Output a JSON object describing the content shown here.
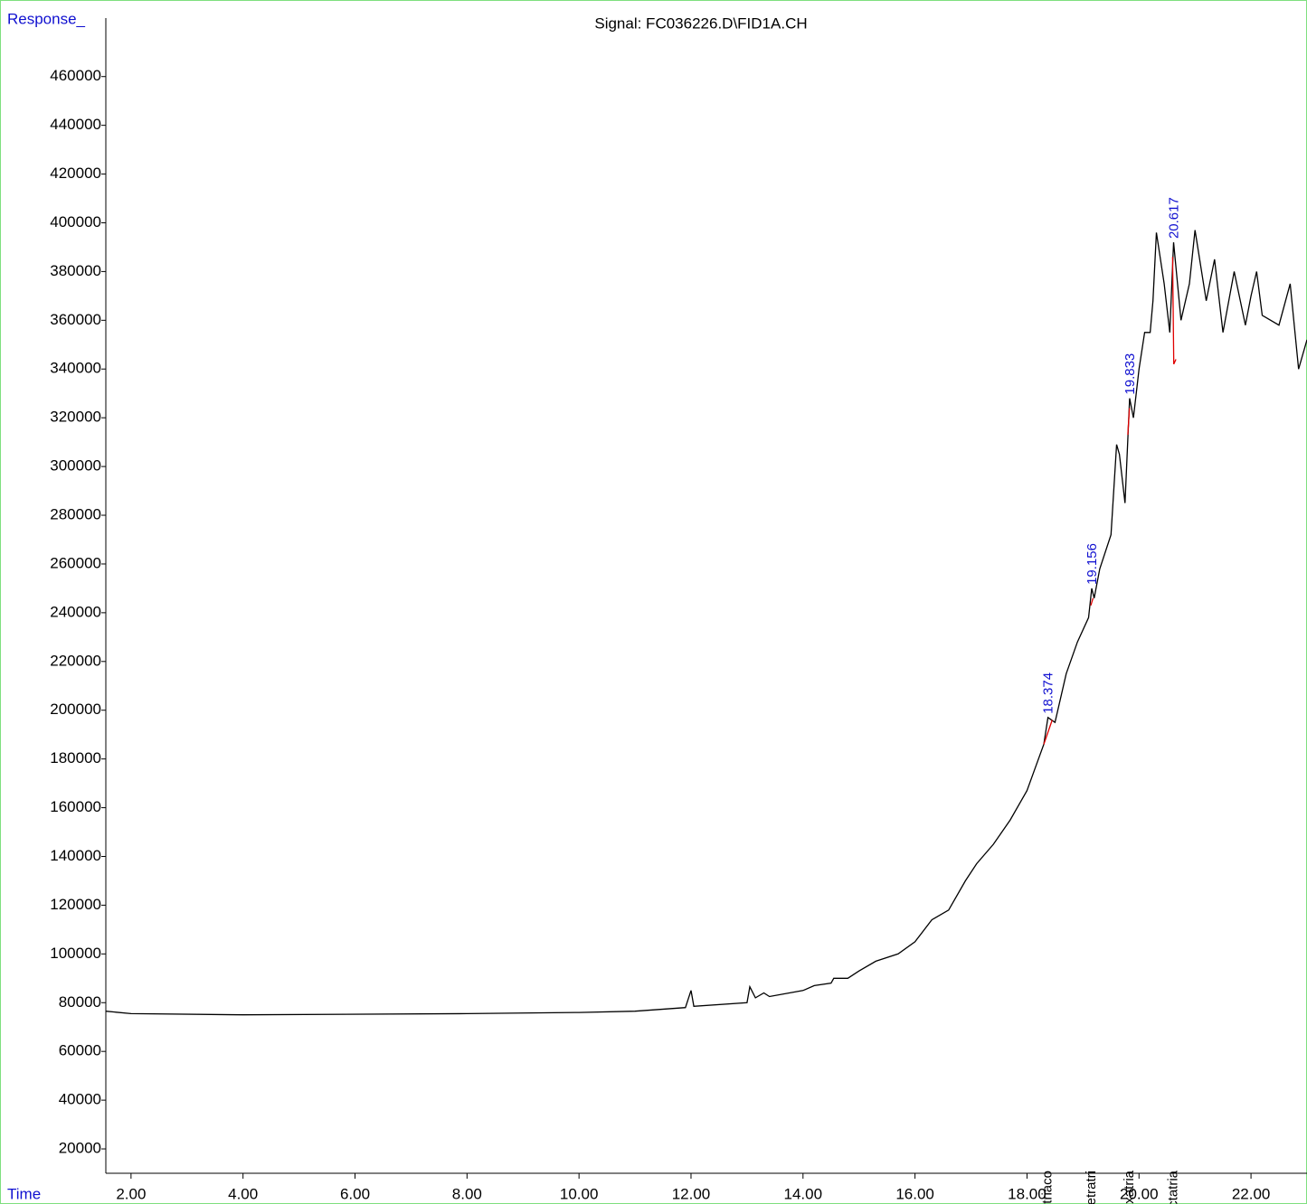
{
  "chart_data": {
    "type": "line",
    "title": "Signal: FC036226.D\\FID1A.CH",
    "y_label": "Response_",
    "x_label": "Time",
    "color": "#000000",
    "baseline_color": "#e00000",
    "annotation_color": "#1010d0",
    "xlim": [
      1.55,
      23.0
    ],
    "ylim": [
      10000,
      484000
    ],
    "xticks": [
      {
        "value": 2,
        "label": "2.00"
      },
      {
        "value": 4,
        "label": "4.00"
      },
      {
        "value": 6,
        "label": "6.00"
      },
      {
        "value": 8,
        "label": "8.00"
      },
      {
        "value": 10,
        "label": "10.00"
      },
      {
        "value": 12,
        "label": "12.00"
      },
      {
        "value": 14,
        "label": "14.00"
      },
      {
        "value": 16,
        "label": "16.00"
      },
      {
        "value": 18,
        "label": "18.00"
      },
      {
        "value": 20,
        "label": "20.00"
      },
      {
        "value": 22,
        "label": "22.00"
      }
    ],
    "yticks": [
      20000,
      40000,
      60000,
      80000,
      100000,
      120000,
      140000,
      160000,
      180000,
      200000,
      220000,
      240000,
      260000,
      280000,
      300000,
      320000,
      340000,
      360000,
      380000,
      400000,
      420000,
      440000,
      460000
    ],
    "x": [
      1.55,
      2,
      4,
      8,
      10,
      11,
      11.9,
      12.0,
      12.05,
      13,
      13.05,
      13.15,
      13.3,
      13.4,
      14,
      14.2,
      14.5,
      14.55,
      14.8,
      15,
      15.3,
      15.7,
      16,
      16.3,
      16.6,
      16.9,
      17.1,
      17.4,
      17.7,
      18,
      18.3,
      18.374,
      18.5,
      18.7,
      18.9,
      19.1,
      19.156,
      19.2,
      19.3,
      19.5,
      19.6,
      19.65,
      19.75,
      19.833,
      19.9,
      20.0,
      20.1,
      20.2,
      20.25,
      20.31,
      20.45,
      20.55,
      20.617,
      20.75,
      20.9,
      21.0,
      21.2,
      21.35,
      21.5,
      21.7,
      21.9,
      22.0,
      22.1,
      22.2,
      22.5,
      22.7,
      22.85,
      23.0
    ],
    "values": [
      76500,
      75500,
      75000,
      75500,
      76000,
      76500,
      78000,
      85000,
      78500,
      80000,
      86500,
      82000,
      84000,
      82500,
      85000,
      87000,
      88000,
      90000,
      90000,
      93000,
      97000,
      100000,
      105000,
      114000,
      118000,
      130000,
      137000,
      145000,
      155000,
      167000,
      186000,
      197000,
      195000,
      215000,
      228000,
      238000,
      250000,
      246000,
      258000,
      272000,
      309000,
      305000,
      285000,
      328000,
      320000,
      340000,
      355000,
      355000,
      368000,
      396000,
      375000,
      355000,
      392000,
      360000,
      375000,
      397000,
      368000,
      385000,
      355000,
      380000,
      358000,
      370000,
      380000,
      362000,
      358000,
      375000,
      340000,
      352000
    ],
    "baselines": [
      {
        "x": [
          18.3,
          18.45
        ],
        "values": [
          186000,
          196000
        ]
      },
      {
        "x": [
          19.14,
          19.18
        ],
        "values": [
          243000,
          246000
        ]
      },
      {
        "x": [
          19.8,
          19.83
        ],
        "values": [
          313000,
          324000
        ]
      },
      {
        "x": [
          20.6,
          20.62,
          20.66
        ],
        "values": [
          386000,
          342000,
          344000
        ]
      }
    ],
    "peaks": [
      {
        "time": 18.374,
        "label": "18.374",
        "response": 197000,
        "compound": "n-Dotriaco"
      },
      {
        "time": 19.156,
        "label": "19.156",
        "response": 250000,
        "compound": "n-Tetratri"
      },
      {
        "time": 19.833,
        "label": "19.833",
        "response": 328000,
        "compound": "n-Hexatria"
      },
      {
        "time": 20.617,
        "label": "20.617",
        "response": 392000,
        "compound": "n-Octatria"
      }
    ]
  }
}
